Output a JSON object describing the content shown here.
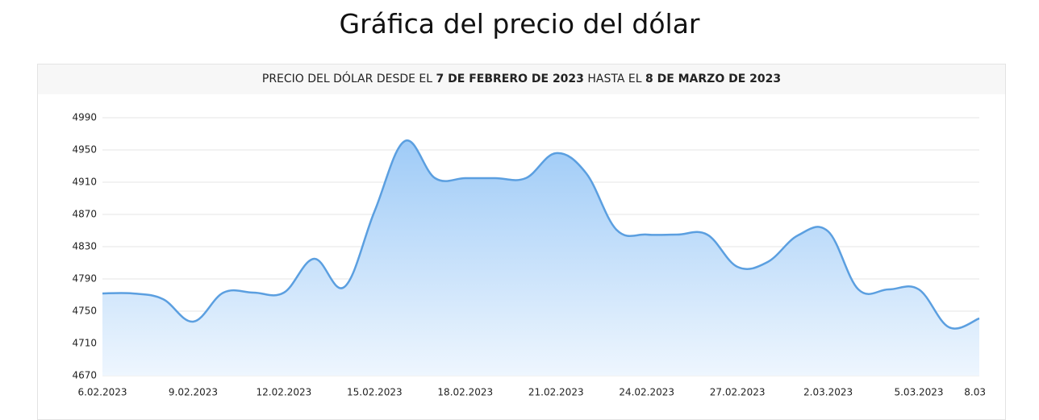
{
  "page_title": "Gráfica del precio del dólar",
  "card_header": [
    "PRECIO DEL DÓLAR DESDE EL ",
    "7 DE FEBRERO DE 2023",
    " HASTA EL ",
    "8 DE MARZO DE 2023"
  ],
  "chart_data": {
    "type": "area",
    "categories": [
      "6.02.2023",
      null,
      null,
      "9.02.2023",
      null,
      null,
      "12.02.2023",
      null,
      null,
      "15.02.2023",
      null,
      null,
      "18.02.2023",
      null,
      null,
      "21.02.2023",
      null,
      null,
      "24.02.2023",
      null,
      null,
      "27.02.2023",
      null,
      null,
      "2.03.2023",
      null,
      null,
      "5.03.2023",
      null,
      "8.03"
    ],
    "series": [
      {
        "name": "Precio",
        "color": "#5b9fe0",
        "values": [
          4772,
          4772,
          4765,
          4737,
          4773,
          4773,
          4773,
          4815,
          4780,
          4874,
          4961,
          4915,
          4915,
          4915,
          4915,
          4946,
          4921,
          4851,
          4845,
          4845,
          4845,
          4805,
          4811,
          4844,
          4849,
          4777,
          4777,
          4777,
          4730,
          4741
        ]
      }
    ],
    "ylim": [
      4670,
      4990
    ],
    "yticks": [
      4670,
      4710,
      4750,
      4790,
      4830,
      4870,
      4910,
      4950,
      4990
    ],
    "grid": true
  }
}
